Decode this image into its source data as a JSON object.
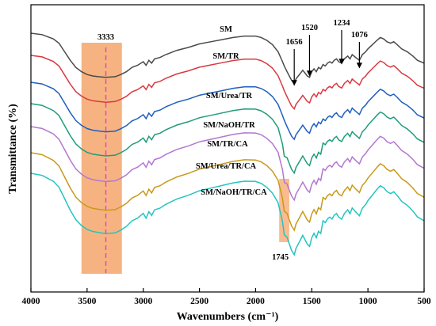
{
  "chart_data": {
    "type": "line",
    "xlabel": "Wavenumbers (cm⁻¹)",
    "ylabel": "Transmittance (%)",
    "xlim": [
      4000,
      500
    ],
    "x_reversed": true,
    "x_ticks": [
      "4000",
      "3500",
      "3000",
      "2500",
      "2000",
      "1500",
      "1000",
      "500"
    ],
    "y_tick_labels": false,
    "grid": false,
    "legend": "none",
    "series": [
      {
        "name": "SM",
        "color": "#4a4a4a",
        "offset": 0
      },
      {
        "name": "SM/TR",
        "color": "#d9393f",
        "offset": 1
      },
      {
        "name": "SM/Urea/TR",
        "color": "#1f5fbf",
        "offset": 2
      },
      {
        "name": "SM/NaOH/TR",
        "color": "#1f9c7c",
        "offset": 3
      },
      {
        "name": "SM/TR/CA",
        "color": "#b377d1",
        "offset": 4
      },
      {
        "name": "SM/Urea/TR/CA",
        "color": "#c89a17",
        "offset": 5
      },
      {
        "name": "SM/NaOH/TR/CA",
        "color": "#26c4c0",
        "offset": 6
      }
    ],
    "annotations": {
      "band_3333": {
        "label": "3333",
        "x": 3333,
        "band": [
          3550,
          3190
        ],
        "color": "#f5a66b"
      },
      "band_1745": {
        "label": "1745",
        "x": 1745,
        "band": [
          1790,
          1700
        ],
        "color": "#f5a66b"
      },
      "peaks": [
        {
          "label": "1656",
          "x": 1656
        },
        {
          "label": "1520",
          "x": 1520
        },
        {
          "label": "1234",
          "x": 1234
        },
        {
          "label": "1076",
          "x": 1076
        }
      ]
    }
  }
}
